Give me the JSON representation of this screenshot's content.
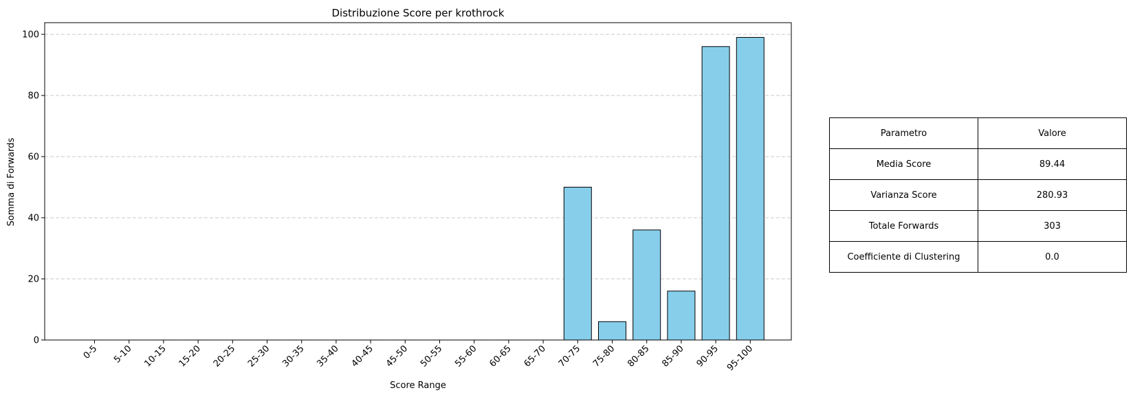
{
  "chart_data": {
    "type": "bar",
    "title": "Distribuzione Score per krothrock",
    "xlabel": "Score Range",
    "ylabel": "Somma di Forwards",
    "categories": [
      "0-5",
      "5-10",
      "10-15",
      "15-20",
      "20-25",
      "25-30",
      "30-35",
      "35-40",
      "40-45",
      "45-50",
      "50-55",
      "55-60",
      "60-65",
      "65-70",
      "70-75",
      "75-80",
      "80-85",
      "85-90",
      "90-95",
      "95-100"
    ],
    "values": [
      0,
      0,
      0,
      0,
      0,
      0,
      0,
      0,
      0,
      0,
      0,
      0,
      0,
      0,
      50,
      6,
      36,
      16,
      96,
      99
    ],
    "ylim": [
      0,
      104
    ],
    "yticks": [
      0,
      20,
      40,
      60,
      80,
      100
    ],
    "grid": "y dashed",
    "bar_color": "#87CEEB",
    "edge_color": "#000000"
  },
  "table": {
    "header": [
      "Parametro",
      "Valore"
    ],
    "rows": [
      [
        "Media Score",
        "89.44"
      ],
      [
        "Varianza Score",
        "280.93"
      ],
      [
        "Totale Forwards",
        "303"
      ],
      [
        "Coefficiente di Clustering",
        "0.0"
      ]
    ]
  }
}
